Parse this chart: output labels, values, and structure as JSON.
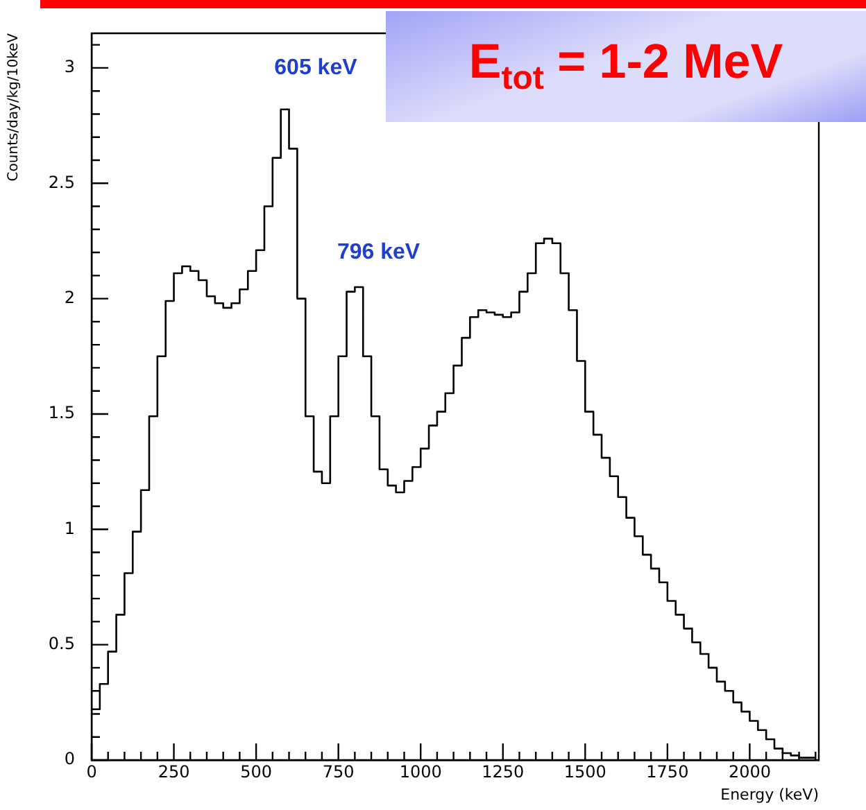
{
  "chart_data": {
    "type": "histogram",
    "title": "E$_{tot}$ = 1-2 MeV",
    "xlabel": "Energy (keV)",
    "ylabel": "Counts/day/kg/10keV",
    "bins": [
      0,
      25,
      50,
      75,
      100,
      125,
      150,
      175,
      200,
      225,
      250,
      275,
      300,
      325,
      350,
      375,
      400,
      425,
      450,
      475,
      500,
      525,
      550,
      575,
      600,
      625,
      650,
      675,
      700,
      725,
      750,
      775,
      800,
      825,
      850,
      875,
      900,
      925,
      950,
      975,
      1000,
      1025,
      1050,
      1075,
      1100,
      1125,
      1150,
      1175,
      1200,
      1225,
      1250,
      1275,
      1300,
      1325,
      1350,
      1375,
      1400,
      1425,
      1450,
      1475,
      1500,
      1525,
      1550,
      1575,
      1600,
      1625,
      1650,
      1675,
      1700,
      1725,
      1750,
      1775,
      1800,
      1825,
      1850,
      1875,
      1900,
      1925,
      1950,
      1975,
      2000,
      2025,
      2050,
      2075,
      2100,
      2125,
      2150,
      2175,
      2200
    ],
    "values": [
      0.22,
      0.33,
      0.47,
      0.63,
      0.81,
      0.99,
      1.17,
      1.49,
      1.75,
      1.99,
      2.11,
      2.14,
      2.12,
      2.08,
      2.01,
      1.98,
      1.96,
      1.98,
      2.04,
      2.12,
      2.21,
      2.4,
      2.61,
      2.82,
      2.65,
      2.0,
      1.49,
      1.25,
      1.2,
      1.49,
      1.75,
      2.03,
      2.05,
      1.75,
      1.49,
      1.26,
      1.19,
      1.16,
      1.21,
      1.27,
      1.35,
      1.45,
      1.51,
      1.59,
      1.71,
      1.83,
      1.92,
      1.95,
      1.94,
      1.93,
      1.92,
      1.94,
      2.03,
      2.11,
      2.24,
      2.26,
      2.24,
      2.11,
      1.95,
      1.73,
      1.51,
      1.41,
      1.31,
      1.23,
      1.14,
      1.05,
      0.97,
      0.89,
      0.83,
      0.77,
      0.69,
      0.63,
      0.57,
      0.51,
      0.46,
      0.4,
      0.34,
      0.3,
      0.25,
      0.21,
      0.17,
      0.13,
      0.09,
      0.05,
      0.03,
      0.02,
      0.01,
      0.01
    ],
    "color": "#000000",
    "xlim": [
      0,
      2210
    ],
    "xticks": [
      0,
      250,
      500,
      750,
      1000,
      1250,
      1500,
      1750,
      2000
    ],
    "ylim": [
      0,
      3.15
    ],
    "yticks": [
      0,
      0.5,
      1,
      1.5,
      2,
      2.5,
      3
    ],
    "annotations": [
      {
        "text": "605 keV",
        "x": 605,
        "y": 2.83
      },
      {
        "text": "796 keV",
        "x": 796,
        "y": 2.03
      }
    ],
    "grid": false,
    "legend": false
  }
}
